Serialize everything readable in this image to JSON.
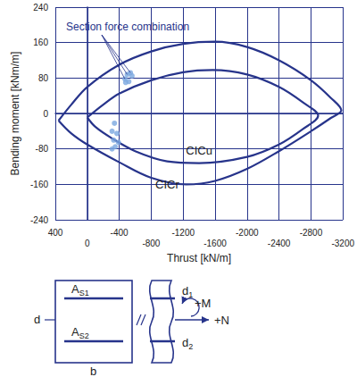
{
  "chart_data": {
    "type": "line",
    "x_label": "Thrust [kN/m]",
    "y_label": "Bending moment [kNm/m]",
    "xlim": [
      400,
      -3200
    ],
    "xticks": [
      400,
      0,
      -400,
      -800,
      -1200,
      -1600,
      -2000,
      -2400,
      -2800,
      -3200
    ],
    "ylim": [
      -240,
      240
    ],
    "yticks": [
      -240,
      -160,
      -80,
      0,
      80,
      160,
      240
    ],
    "grid": true,
    "series": [
      {
        "name": "CICr",
        "type": "line",
        "color": "#27348b",
        "x": [
          360,
          200,
          0,
          -400,
          -800,
          -1200,
          -1600,
          -2000,
          -2400,
          -2800,
          -3050,
          -3180,
          -3050,
          -2800,
          -2400,
          -2000,
          -1600,
          -1240,
          -800,
          -400,
          0,
          200,
          360
        ],
        "values": [
          -16,
          20,
          60,
          110,
          140,
          157,
          162,
          150,
          120,
          75,
          35,
          7,
          -10,
          -40,
          -85,
          -125,
          -152,
          -160,
          -145,
          -110,
          -70,
          -45,
          -16
        ]
      },
      {
        "name": "CICu",
        "type": "line",
        "color": "#27348b",
        "x": [
          0,
          -200,
          -400,
          -800,
          -1200,
          -1570,
          -2000,
          -2400,
          -2700,
          -2890,
          -2700,
          -2400,
          -2000,
          -1400,
          -1000,
          -600,
          -300,
          -100,
          0
        ],
        "values": [
          -9,
          20,
          45,
          75,
          93,
          98,
          88,
          60,
          25,
          -5,
          -35,
          -70,
          -98,
          -112,
          -108,
          -85,
          -55,
          -30,
          -9
        ]
      },
      {
        "name": "Section force combination",
        "type": "scatter",
        "color": "#7ba7e0",
        "x": [
          -470,
          -500,
          -540,
          -560,
          -520,
          -480,
          -340,
          -310,
          -370,
          -330,
          -390,
          -350,
          -310
        ],
        "values": [
          78,
          88,
          92,
          85,
          72,
          70,
          -22,
          -40,
          -45,
          -60,
          -65,
          -75,
          -80
        ]
      }
    ]
  },
  "section_diagram": {
    "labels": [
      {
        "main": "A",
        "sub": "S1"
      },
      {
        "main": "A",
        "sub": "S2"
      },
      {
        "main": "d",
        "sub": ""
      },
      {
        "main": "b",
        "sub": ""
      },
      {
        "main": "d",
        "sub": "1"
      },
      {
        "main": "d",
        "sub": "2"
      },
      {
        "main": "+M",
        "sub": ""
      },
      {
        "main": "+N",
        "sub": ""
      }
    ]
  }
}
